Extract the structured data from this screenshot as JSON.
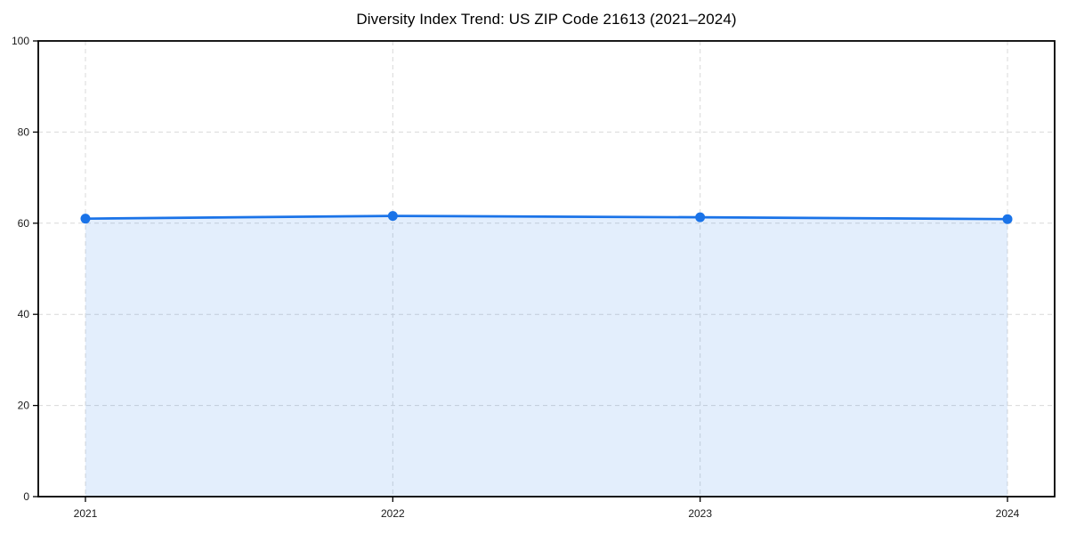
{
  "page": {
    "background": "#ffffff"
  },
  "chart_data": {
    "type": "area",
    "title": "Diversity Index Trend: US ZIP Code 21613 (2021–2024)",
    "categories": [
      "2021",
      "2022",
      "2023",
      "2024"
    ],
    "values": [
      61.0,
      61.6,
      61.3,
      60.9
    ],
    "xlabel": "",
    "ylabel": "",
    "ylim": [
      0,
      100
    ],
    "yticks": [
      0,
      20,
      40,
      60,
      80,
      100
    ],
    "grid": "dashed-both-axes",
    "legend": "none",
    "colors": {
      "line": "#1a73e8",
      "marker": "#1a73e8",
      "fill": "#1a73e8",
      "fill_opacity": 0.12,
      "grid": "#d9d9d9",
      "axis": "#000000",
      "title_text": "#000000",
      "tick_text": "#1a1a1a"
    }
  }
}
